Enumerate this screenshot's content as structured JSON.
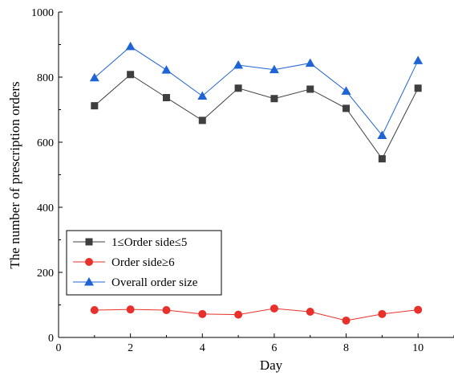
{
  "chart_data": {
    "type": "line",
    "title": "",
    "xlabel": "Day",
    "ylabel": "The number of prescription orders",
    "xlim": [
      0,
      11
    ],
    "ylim": [
      0,
      1000
    ],
    "x_ticks": [
      0,
      2,
      4,
      6,
      8,
      10
    ],
    "y_ticks": [
      0,
      200,
      400,
      600,
      800,
      1000
    ],
    "grid": false,
    "legend_position": "bottom-left",
    "x": [
      1,
      2,
      3,
      4,
      5,
      6,
      7,
      8,
      9,
      10
    ],
    "series": [
      {
        "name": "1≤Order side≤5",
        "marker": "square",
        "color": "#3f3f3f",
        "values": [
          712,
          808,
          737,
          667,
          766,
          734,
          763,
          704,
          549,
          766
        ]
      },
      {
        "name": "Order side≥6",
        "marker": "circle",
        "color": "#e8312a",
        "values": [
          84,
          86,
          84,
          72,
          70,
          89,
          79,
          52,
          72,
          85
        ]
      },
      {
        "name": "Overall order size",
        "marker": "triangle",
        "color": "#1f64d4",
        "values": [
          798,
          894,
          822,
          742,
          837,
          823,
          843,
          757,
          621,
          851
        ]
      }
    ]
  }
}
